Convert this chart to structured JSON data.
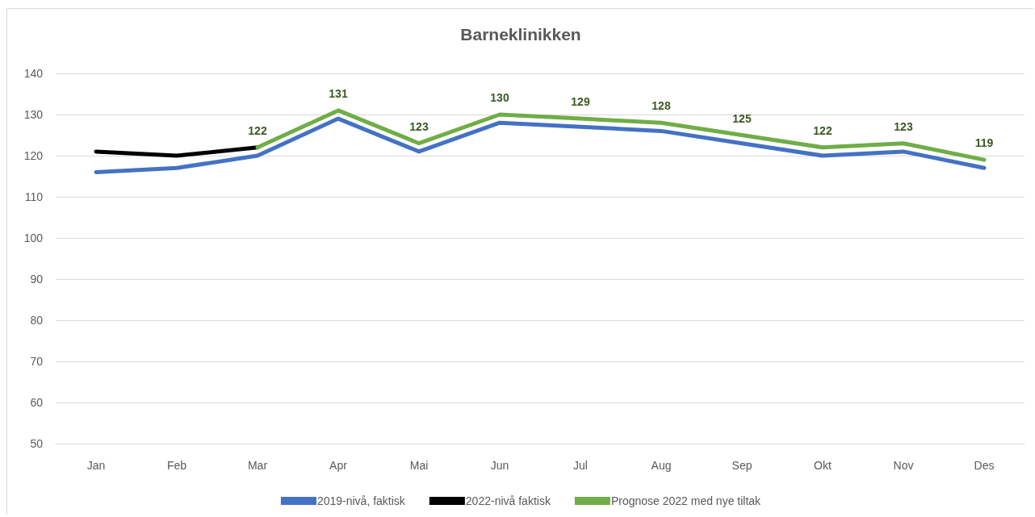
{
  "chart_data": {
    "type": "line",
    "title": "Barneklinikken",
    "categories": [
      "Jan",
      "Feb",
      "Mar",
      "Apr",
      "Mai",
      "Jun",
      "Jul",
      "Aug",
      "Sep",
      "Okt",
      "Nov",
      "Des"
    ],
    "series": [
      {
        "name": "2019-nivå, faktisk",
        "color": "#4472c4",
        "values": [
          116,
          117,
          120,
          129,
          121,
          128,
          127,
          126,
          123,
          120,
          121,
          117
        ]
      },
      {
        "name": "2022-nivå faktisk",
        "color": "#000000",
        "values": [
          121,
          120,
          122,
          null,
          null,
          null,
          null,
          null,
          null,
          null,
          null,
          null
        ]
      },
      {
        "name": "Prognose 2022 med nye tiltak",
        "color": "#70ad47",
        "values": [
          null,
          null,
          122,
          131,
          123,
          130,
          129,
          128,
          125,
          122,
          123,
          119
        ],
        "value_labels": [
          null,
          null,
          "122",
          "131",
          "123",
          "130",
          "129",
          "128",
          "125",
          "122",
          "123",
          "119"
        ]
      }
    ],
    "ylim": [
      50,
      140
    ],
    "yticks": [
      50,
      60,
      70,
      80,
      90,
      100,
      110,
      120,
      130,
      140
    ],
    "grid": "y",
    "legend": "bottom",
    "marker": "none",
    "line_style": "solid"
  }
}
